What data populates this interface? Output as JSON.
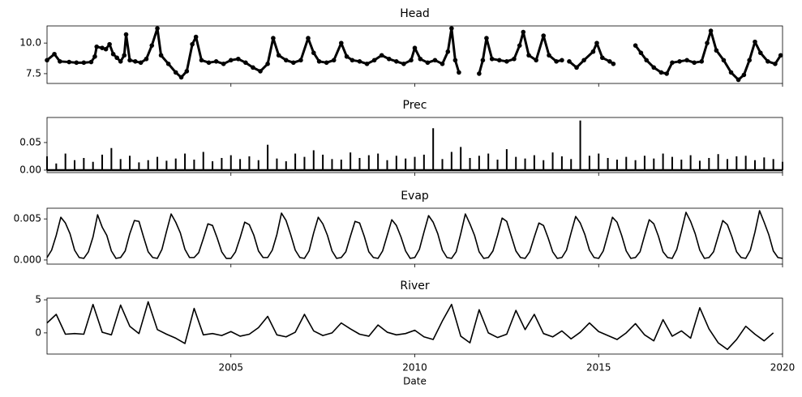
{
  "chart_data": [
    {
      "type": "line",
      "title": "Head",
      "color": "#000000",
      "marker": "circle",
      "x": [
        2000.0,
        2000.2,
        2000.35,
        2000.6,
        2000.8,
        2001.0,
        2001.2,
        2001.3,
        2001.35,
        2001.5,
        2001.6,
        2001.7,
        2001.8,
        2001.9,
        2002.0,
        2002.1,
        2002.15,
        2002.25,
        2002.4,
        2002.55,
        2002.7,
        2002.85,
        2003.0,
        2003.1,
        2003.3,
        2003.5,
        2003.65,
        2003.8,
        2003.95,
        2004.05,
        2004.2,
        2004.4,
        2004.6,
        2004.8,
        2005.0,
        2005.2,
        2005.4,
        2005.6,
        2005.8,
        2006.0,
        2006.15,
        2006.3,
        2006.5,
        2006.7,
        2006.9,
        2007.1,
        2007.25,
        2007.4,
        2007.6,
        2007.8,
        2008.0,
        2008.15,
        2008.3,
        2008.5,
        2008.7,
        2008.9,
        2009.1,
        2009.3,
        2009.5,
        2009.7,
        2009.9,
        2010.0,
        2010.15,
        2010.35,
        2010.55,
        2010.75,
        2010.9,
        2011.0,
        2011.1,
        2011.2,
        2011.5,
        2011.75,
        2011.85,
        2011.95,
        2012.1,
        2012.3,
        2012.5,
        2012.7,
        2012.85,
        2012.95,
        2013.1,
        2013.3,
        2013.5,
        2013.65,
        2013.85,
        2014.0,
        2014.1,
        2014.2,
        2014.4,
        2014.6,
        2014.85,
        2014.95,
        2015.1,
        2015.3,
        2015.4,
        2015.7,
        2016.0,
        2016.15,
        2016.3,
        2016.5,
        2016.7,
        2016.85,
        2017.0,
        2017.2,
        2017.4,
        2017.6,
        2017.8,
        2017.95,
        2018.05,
        2018.2,
        2018.4,
        2018.6,
        2018.8,
        2018.95,
        2019.1,
        2019.25,
        2019.4,
        2019.6,
        2019.8,
        2019.95
      ],
      "values": [
        8.6,
        9.1,
        8.5,
        8.45,
        8.4,
        8.4,
        8.45,
        8.9,
        9.7,
        9.6,
        9.5,
        9.9,
        9.1,
        8.8,
        8.5,
        9.0,
        10.7,
        8.6,
        8.5,
        8.4,
        8.7,
        9.8,
        11.2,
        9.0,
        8.3,
        7.6,
        7.2,
        7.7,
        9.9,
        10.5,
        8.6,
        8.4,
        8.5,
        8.3,
        8.6,
        8.7,
        8.4,
        8.0,
        7.7,
        8.3,
        10.4,
        9.0,
        8.6,
        8.4,
        8.6,
        10.4,
        9.2,
        8.5,
        8.4,
        8.6,
        10.0,
        8.9,
        8.6,
        8.5,
        8.3,
        8.6,
        9.0,
        8.7,
        8.5,
        8.3,
        8.6,
        9.6,
        8.7,
        8.4,
        8.6,
        8.3,
        9.3,
        11.2,
        8.6,
        7.6,
        null,
        7.5,
        8.6,
        10.4,
        8.7,
        8.6,
        8.5,
        8.7,
        9.8,
        10.9,
        9.0,
        8.6,
        10.6,
        9.0,
        8.5,
        8.6,
        null,
        8.5,
        8.0,
        8.6,
        9.3,
        10.0,
        8.8,
        8.5,
        8.3,
        null,
        9.8,
        9.2,
        8.6,
        8.0,
        7.6,
        7.5,
        8.4,
        8.5,
        8.6,
        8.4,
        8.5,
        10.0,
        11.0,
        9.4,
        8.6,
        7.6,
        7.0,
        7.4,
        8.6,
        10.1,
        9.2,
        8.5,
        8.3,
        9.0
      ],
      "xlim": [
        2000,
        2020
      ],
      "ylim": [
        6.7,
        11.4
      ],
      "yticks": [
        7.5,
        {
          "value": 10,
          "label": "10.0"
        }
      ]
    },
    {
      "type": "bar",
      "title": "Prec",
      "color": "#000000",
      "x": [
        2000,
        2000.25,
        2000.5,
        2000.75,
        2001,
        2001.25,
        2001.5,
        2001.75,
        2002,
        2002.25,
        2002.5,
        2002.75,
        2003,
        2003.25,
        2003.5,
        2003.75,
        2004,
        2004.25,
        2004.5,
        2004.75,
        2005,
        2005.25,
        2005.5,
        2005.75,
        2006,
        2006.25,
        2006.5,
        2006.75,
        2007,
        2007.25,
        2007.5,
        2007.75,
        2008,
        2008.25,
        2008.5,
        2008.75,
        2009,
        2009.25,
        2009.5,
        2009.75,
        2010,
        2010.25,
        2010.5,
        2010.75,
        2011,
        2011.25,
        2011.5,
        2011.75,
        2012,
        2012.25,
        2012.5,
        2012.75,
        2013,
        2013.25,
        2013.5,
        2013.75,
        2014,
        2014.25,
        2014.5,
        2014.75,
        2015,
        2015.25,
        2015.5,
        2015.75,
        2016,
        2016.25,
        2016.5,
        2016.75,
        2017,
        2017.25,
        2017.5,
        2017.75,
        2018,
        2018.25,
        2018.5,
        2018.75,
        2019,
        2019.25,
        2019.5,
        2019.75,
        2020
      ],
      "values": [
        0.025,
        0.012,
        0.03,
        0.018,
        0.022,
        0.015,
        0.028,
        0.04,
        0.02,
        0.026,
        0.014,
        0.018,
        0.024,
        0.017,
        0.021,
        0.03,
        0.019,
        0.033,
        0.016,
        0.022,
        0.027,
        0.02,
        0.025,
        0.018,
        0.046,
        0.021,
        0.016,
        0.03,
        0.024,
        0.036,
        0.028,
        0.02,
        0.019,
        0.032,
        0.022,
        0.027,
        0.03,
        0.018,
        0.026,
        0.021,
        0.024,
        0.028,
        0.076,
        0.02,
        0.033,
        0.042,
        0.022,
        0.026,
        0.03,
        0.019,
        0.038,
        0.024,
        0.021,
        0.027,
        0.018,
        0.032,
        0.025,
        0.02,
        0.09,
        0.026,
        0.03,
        0.022,
        0.019,
        0.024,
        0.018,
        0.026,
        0.021,
        0.03,
        0.024,
        0.019,
        0.027,
        0.017,
        0.022,
        0.029,
        0.02,
        0.025,
        0.026,
        0.018,
        0.023,
        0.02,
        0.015
      ],
      "xlim": [
        2000,
        2020
      ],
      "ylim": [
        -0.0045,
        0.0955
      ],
      "yticks": [
        {
          "value": 0,
          "label": "0.00"
        },
        {
          "value": 0.05,
          "label": "0.05"
        }
      ]
    },
    {
      "type": "line",
      "title": "Evap",
      "color": "#000000",
      "x": [
        2000,
        2000.125,
        2000.25,
        2000.375,
        2000.5,
        2000.625,
        2000.75,
        2000.875,
        2001,
        2001.125,
        2001.25,
        2001.375,
        2001.5,
        2001.625,
        2001.75,
        2001.875,
        2002,
        2002.125,
        2002.25,
        2002.375,
        2002.5,
        2002.625,
        2002.75,
        2002.875,
        2003,
        2003.125,
        2003.25,
        2003.375,
        2003.5,
        2003.625,
        2003.75,
        2003.875,
        2004,
        2004.125,
        2004.25,
        2004.375,
        2004.5,
        2004.625,
        2004.75,
        2004.875,
        2005,
        2005.125,
        2005.25,
        2005.375,
        2005.5,
        2005.625,
        2005.75,
        2005.875,
        2006,
        2006.125,
        2006.25,
        2006.375,
        2006.5,
        2006.625,
        2006.75,
        2006.875,
        2007,
        2007.125,
        2007.25,
        2007.375,
        2007.5,
        2007.625,
        2007.75,
        2007.875,
        2008,
        2008.125,
        2008.25,
        2008.375,
        2008.5,
        2008.625,
        2008.75,
        2008.875,
        2009,
        2009.125,
        2009.25,
        2009.375,
        2009.5,
        2009.625,
        2009.75,
        2009.875,
        2010,
        2010.125,
        2010.25,
        2010.375,
        2010.5,
        2010.625,
        2010.75,
        2010.875,
        2011,
        2011.125,
        2011.25,
        2011.375,
        2011.5,
        2011.625,
        2011.75,
        2011.875,
        2012,
        2012.125,
        2012.25,
        2012.375,
        2012.5,
        2012.625,
        2012.75,
        2012.875,
        2013,
        2013.125,
        2013.25,
        2013.375,
        2013.5,
        2013.625,
        2013.75,
        2013.875,
        2014,
        2014.125,
        2014.25,
        2014.375,
        2014.5,
        2014.625,
        2014.75,
        2014.875,
        2015,
        2015.125,
        2015.25,
        2015.375,
        2015.5,
        2015.625,
        2015.75,
        2015.875,
        2016,
        2016.125,
        2016.25,
        2016.375,
        2016.5,
        2016.625,
        2016.75,
        2016.875,
        2017,
        2017.125,
        2017.25,
        2017.375,
        2017.5,
        2017.625,
        2017.75,
        2017.875,
        2018,
        2018.125,
        2018.25,
        2018.375,
        2018.5,
        2018.625,
        2018.75,
        2018.875,
        2019,
        2019.125,
        2019.25,
        2019.375,
        2019.5,
        2019.625,
        2019.75,
        2019.875,
        2020
      ],
      "values": [
        0.0003,
        0.0012,
        0.003,
        0.0052,
        0.0045,
        0.0032,
        0.0012,
        0.0003,
        0.0002,
        0.001,
        0.0028,
        0.0055,
        0.004,
        0.003,
        0.0011,
        0.0002,
        0.0003,
        0.0011,
        0.0032,
        0.0048,
        0.0047,
        0.0028,
        0.001,
        0.0003,
        0.0002,
        0.0013,
        0.0035,
        0.0056,
        0.0046,
        0.0033,
        0.0013,
        0.0003,
        0.0003,
        0.0009,
        0.0026,
        0.0044,
        0.0042,
        0.0027,
        0.001,
        0.0002,
        0.0002,
        0.001,
        0.0027,
        0.0046,
        0.0043,
        0.003,
        0.0011,
        0.0003,
        0.0003,
        0.0012,
        0.0031,
        0.0057,
        0.0048,
        0.0031,
        0.0012,
        0.0003,
        0.0002,
        0.0011,
        0.0033,
        0.0052,
        0.0044,
        0.003,
        0.0011,
        0.0002,
        0.0003,
        0.001,
        0.0029,
        0.0047,
        0.0045,
        0.0029,
        0.001,
        0.0003,
        0.0002,
        0.0011,
        0.003,
        0.0049,
        0.0042,
        0.0028,
        0.0011,
        0.0002,
        0.0003,
        0.0013,
        0.0034,
        0.0054,
        0.0046,
        0.0032,
        0.0012,
        0.0003,
        0.0002,
        0.001,
        0.0032,
        0.0056,
        0.0044,
        0.003,
        0.001,
        0.0002,
        0.0003,
        0.0011,
        0.003,
        0.0051,
        0.0047,
        0.0029,
        0.0011,
        0.0003,
        0.0002,
        0.001,
        0.0028,
        0.0045,
        0.0042,
        0.0027,
        0.001,
        0.0002,
        0.0003,
        0.0012,
        0.0033,
        0.0053,
        0.0045,
        0.0031,
        0.0012,
        0.0003,
        0.0002,
        0.0011,
        0.0031,
        0.0052,
        0.0046,
        0.003,
        0.0011,
        0.0002,
        0.0003,
        0.001,
        0.003,
        0.0049,
        0.0044,
        0.0029,
        0.001,
        0.0003,
        0.0002,
        0.0013,
        0.0035,
        0.0058,
        0.0047,
        0.0032,
        0.0012,
        0.0002,
        0.0003,
        0.001,
        0.0029,
        0.0048,
        0.0043,
        0.0028,
        0.001,
        0.0003,
        0.0002,
        0.0012,
        0.0034,
        0.006,
        0.0046,
        0.0031,
        0.0011,
        0.0003,
        0.0002
      ],
      "xlim": [
        2000,
        2020
      ],
      "ylim": [
        -0.0005,
        0.0063
      ],
      "yticks": [
        {
          "value": 0,
          "label": "0.000"
        },
        {
          "value": 0.005,
          "label": "0.005"
        }
      ]
    },
    {
      "type": "line",
      "title": "River",
      "color": "#000000",
      "xlabel": "Date",
      "x": [
        2000,
        2000.25,
        2000.5,
        2000.75,
        2001,
        2001.25,
        2001.5,
        2001.75,
        2002,
        2002.25,
        2002.5,
        2002.75,
        2003,
        2003.25,
        2003.5,
        2003.75,
        2004,
        2004.25,
        2004.5,
        2004.75,
        2005,
        2005.25,
        2005.5,
        2005.75,
        2006,
        2006.25,
        2006.5,
        2006.75,
        2007,
        2007.25,
        2007.5,
        2007.75,
        2008,
        2008.25,
        2008.5,
        2008.75,
        2009,
        2009.25,
        2009.5,
        2009.75,
        2010,
        2010.25,
        2010.5,
        2010.75,
        2011,
        2011.25,
        2011.5,
        2011.75,
        2012,
        2012.25,
        2012.5,
        2012.75,
        2013,
        2013.25,
        2013.5,
        2013.75,
        2014,
        2014.25,
        2014.5,
        2014.75,
        2015,
        2015.25,
        2015.5,
        2015.75,
        2016,
        2016.25,
        2016.5,
        2016.75,
        2017,
        2017.25,
        2017.5,
        2017.75,
        2018,
        2018.25,
        2018.5,
        2018.75,
        2019,
        2019.25,
        2019.5,
        2019.75
      ],
      "values": [
        1.5,
        2.8,
        -0.2,
        -0.1,
        -0.2,
        4.3,
        0.1,
        -0.3,
        4.2,
        1.0,
        -0.1,
        4.7,
        0.5,
        -0.2,
        -0.8,
        -1.6,
        3.7,
        -0.3,
        -0.1,
        -0.4,
        0.2,
        -0.5,
        -0.2,
        0.8,
        2.5,
        -0.3,
        -0.6,
        0.1,
        2.8,
        0.3,
        -0.4,
        0.0,
        1.5,
        0.6,
        -0.2,
        -0.5,
        1.2,
        0.1,
        -0.3,
        -0.1,
        0.4,
        -0.6,
        -1.0,
        1.8,
        4.3,
        -0.5,
        -1.5,
        3.5,
        0.0,
        -0.7,
        -0.2,
        3.4,
        0.5,
        2.8,
        -0.1,
        -0.6,
        0.3,
        -0.9,
        0.1,
        1.5,
        0.2,
        -0.4,
        -1.0,
        0.0,
        1.4,
        -0.3,
        -1.2,
        2.0,
        -0.5,
        0.3,
        -0.8,
        3.8,
        0.6,
        -1.5,
        -2.5,
        -1.0,
        1.0,
        -0.2,
        -1.2,
        0.0
      ],
      "xlim": [
        2000,
        2020
      ],
      "ylim": [
        -3.2,
        5.25
      ],
      "yticks": [
        0,
        5
      ],
      "xticks": [
        2005,
        2010,
        2015,
        2020
      ]
    }
  ]
}
